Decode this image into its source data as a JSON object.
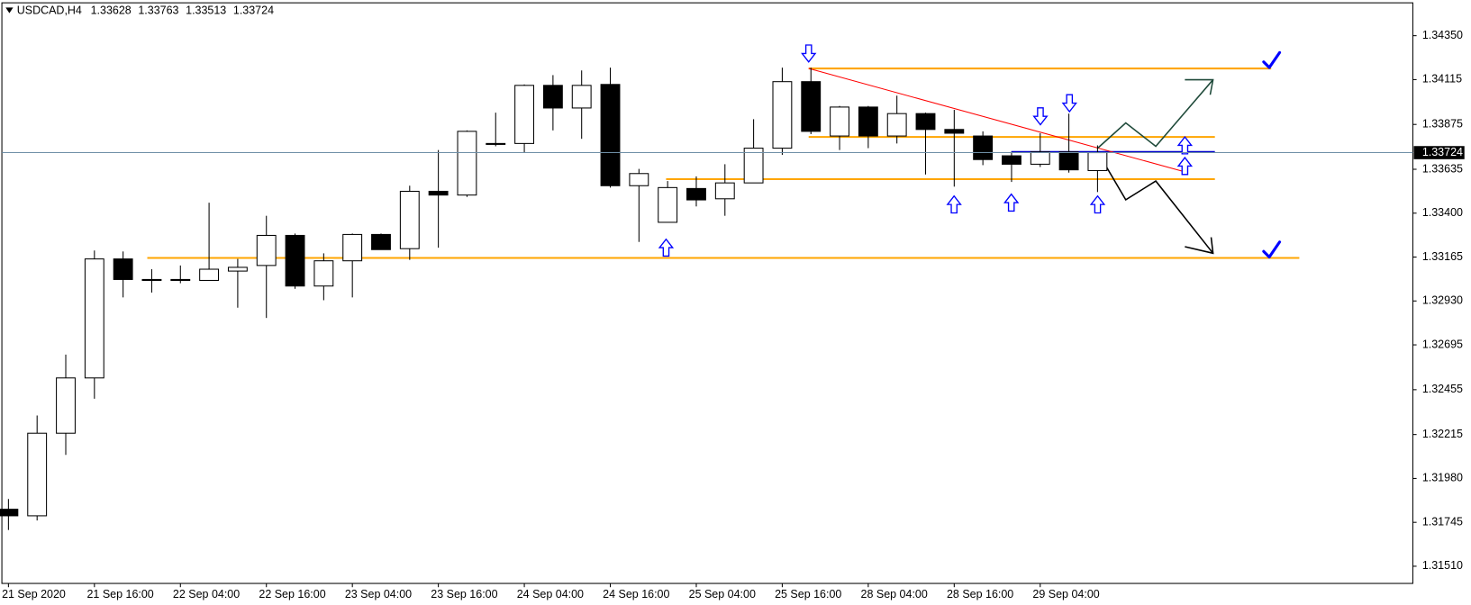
{
  "chart_data": {
    "type": "candlestick",
    "symbol": "USDCAD,H4",
    "categories": [
      "21 Sep 2020",
      null,
      null,
      "21 Sep 16:00",
      null,
      null,
      "22 Sep 04:00",
      null,
      null,
      "22 Sep 16:00",
      null,
      null,
      "23 Sep 04:00",
      null,
      null,
      "23 Sep 16:00",
      null,
      null,
      "24 Sep 04:00",
      null,
      null,
      "24 Sep 16:00",
      null,
      null,
      "25 Sep 04:00",
      null,
      null,
      "25 Sep 16:00",
      null,
      null,
      "28 Sep 04:00",
      null,
      null,
      "28 Sep 16:00",
      null,
      null,
      "29 Sep 04:00",
      null,
      null
    ],
    "open": [
      1.31815,
      1.3178,
      1.32222,
      1.32518,
      1.33155,
      1.33045,
      1.3304,
      1.3304,
      1.3309,
      1.3312,
      1.33281,
      1.3301,
      1.33145,
      1.33286,
      1.3321,
      1.33517,
      1.33497,
      1.33773,
      1.33773,
      1.34084,
      1.33963,
      1.34089,
      1.33547,
      1.33351,
      1.33532,
      1.33477,
      1.33562,
      1.33748,
      1.34104,
      1.33813,
      1.33968,
      1.33813,
      1.33933,
      1.33848,
      1.33813,
      1.33707,
      1.33662,
      1.33728,
      1.33628
    ],
    "high": [
      1.3187,
      1.32317,
      1.32643,
      1.332,
      1.33195,
      1.331,
      1.3312,
      1.33456,
      1.33155,
      1.33386,
      1.33291,
      1.33185,
      1.33291,
      1.33291,
      1.33547,
      1.33738,
      1.33843,
      1.33938,
      1.34089,
      1.34139,
      1.34164,
      1.34179,
      1.33637,
      1.33572,
      1.33597,
      1.33662,
      1.33903,
      1.34179,
      1.34179,
      1.33974,
      1.33974,
      1.34029,
      1.33938,
      1.33953,
      1.33838,
      1.33728,
      1.33828,
      1.33933,
      1.33763
    ],
    "low": [
      1.31704,
      1.31755,
      1.32106,
      1.32407,
      1.32949,
      1.32975,
      1.33025,
      1.3304,
      1.32894,
      1.32839,
      1.32995,
      1.32934,
      1.32949,
      1.33205,
      1.3315,
      1.33215,
      1.33487,
      1.33758,
      1.33722,
      1.33843,
      1.33798,
      1.33537,
      1.33246,
      1.33351,
      1.33436,
      1.33386,
      1.33562,
      1.33712,
      1.33823,
      1.33738,
      1.33748,
      1.33773,
      1.33607,
      1.33542,
      1.33657,
      1.33567,
      1.33647,
      1.33617,
      1.33513
    ],
    "close": [
      1.3178,
      1.32222,
      1.32518,
      1.33155,
      1.33045,
      1.3304,
      1.33045,
      1.331,
      1.3311,
      1.33281,
      1.3301,
      1.33145,
      1.33286,
      1.33205,
      1.33517,
      1.33497,
      1.33838,
      1.33768,
      1.34084,
      1.33963,
      1.34084,
      1.33547,
      1.33612,
      1.33537,
      1.33471,
      1.33562,
      1.33748,
      1.34104,
      1.33838,
      1.33968,
      1.33813,
      1.33933,
      1.33848,
      1.33828,
      1.33687,
      1.33662,
      1.33728,
      1.33632,
      1.33724
    ],
    "up_color": "#ffffff",
    "down_color": "#000000",
    "ylim": [
      1.31418,
      1.34526
    ],
    "yticks": [
      {
        "value": 1.3435,
        "label": "1.34350"
      },
      1.34115,
      1.33875,
      1.33635,
      {
        "value": 1.334,
        "label": "1.33400"
      },
      1.33165,
      {
        "value": 1.3293,
        "label": "1.32930"
      },
      1.32695,
      1.32455,
      1.32215,
      {
        "value": 1.3198,
        "label": "1.31980"
      },
      1.31745,
      {
        "value": 1.3151,
        "label": "1.31510"
      }
    ]
  }
}
